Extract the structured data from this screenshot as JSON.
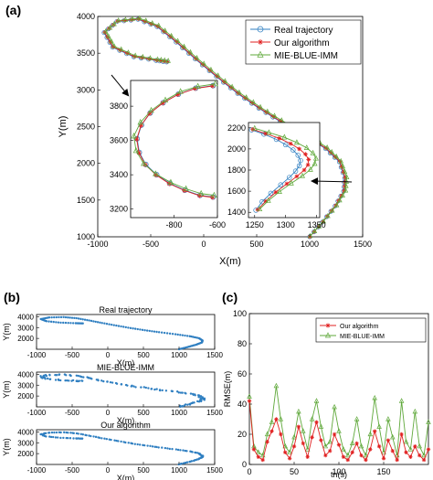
{
  "panels": {
    "a": "(a)",
    "b": "(b)",
    "c": "(c)"
  },
  "colors": {
    "real": "#2f7fc1",
    "ours": "#e02020",
    "mie": "#5fa83a",
    "arrow": "#000000"
  },
  "chart_data": [
    {
      "id": "a-main",
      "type": "line",
      "xlabel": "X(m)",
      "ylabel": "Y(m)",
      "xlim": [
        -1000,
        1500
      ],
      "ylim": [
        1000,
        4000
      ],
      "xticks": [
        -1000,
        -500,
        0,
        500,
        1000,
        1500
      ],
      "yticks": [
        1000,
        1500,
        2000,
        2500,
        3000,
        3500,
        4000
      ],
      "legend": {
        "position": "top-right",
        "entries": [
          "Real trajectory",
          "Our algorithm",
          "MIE-BLUE-IMM"
        ]
      },
      "series": [
        {
          "name": "Real trajectory",
          "marker": "circle",
          "points": [
            [
              1000,
              1000
            ],
            [
              1120,
              1200
            ],
            [
              1240,
              1420
            ],
            [
              1320,
              1620
            ],
            [
              1330,
              1800
            ],
            [
              1280,
              2020
            ],
            [
              1150,
              2200
            ],
            [
              950,
              2380
            ],
            [
              720,
              2570
            ],
            [
              520,
              2750
            ],
            [
              320,
              2950
            ],
            [
              120,
              3180
            ],
            [
              -80,
              3420
            ],
            [
              -260,
              3650
            ],
            [
              -440,
              3860
            ],
            [
              -620,
              3960
            ],
            [
              -820,
              3930
            ],
            [
              -940,
              3780
            ],
            [
              -860,
              3580
            ],
            [
              -660,
              3450
            ],
            [
              -450,
              3400
            ],
            [
              -350,
              3380
            ]
          ]
        },
        {
          "name": "Our algorithm",
          "marker": "star",
          "points": [
            [
              1000,
              1000
            ],
            [
              1125,
              1205
            ],
            [
              1245,
              1425
            ],
            [
              1325,
              1625
            ],
            [
              1335,
              1805
            ],
            [
              1285,
              2025
            ],
            [
              1155,
              2205
            ],
            [
              955,
              2385
            ],
            [
              725,
              2575
            ],
            [
              525,
              2755
            ],
            [
              325,
              2955
            ],
            [
              125,
              3185
            ],
            [
              -75,
              3425
            ],
            [
              -255,
              3655
            ],
            [
              -435,
              3865
            ],
            [
              -615,
              3965
            ],
            [
              -815,
              3935
            ],
            [
              -935,
              3785
            ],
            [
              -855,
              3585
            ],
            [
              -655,
              3455
            ],
            [
              -445,
              3405
            ],
            [
              -345,
              3385
            ]
          ]
        },
        {
          "name": "MIE-BLUE-IMM",
          "marker": "triangle",
          "points": [
            [
              1005,
              1010
            ],
            [
              1130,
              1210
            ],
            [
              1255,
              1430
            ],
            [
              1340,
              1630
            ],
            [
              1350,
              1810
            ],
            [
              1295,
              2030
            ],
            [
              1165,
              2215
            ],
            [
              965,
              2395
            ],
            [
              735,
              2585
            ],
            [
              535,
              2765
            ],
            [
              335,
              2965
            ],
            [
              135,
              3195
            ],
            [
              -65,
              3435
            ],
            [
              -245,
              3665
            ],
            [
              -425,
              3875
            ],
            [
              -605,
              3975
            ],
            [
              -805,
              3945
            ],
            [
              -925,
              3795
            ],
            [
              -845,
              3595
            ],
            [
              -645,
              3465
            ],
            [
              -435,
              3415
            ],
            [
              -335,
              3395
            ]
          ]
        }
      ]
    },
    {
      "id": "a-inset-left",
      "type": "line",
      "xlim": [
        -1000,
        -600
      ],
      "ylim": [
        3150,
        3950
      ],
      "xticks": [
        -800,
        -600
      ],
      "yticks": [
        3200,
        3400,
        3600,
        3800
      ],
      "series": [
        {
          "name": "Real trajectory",
          "points": [
            [
              -620,
              3920
            ],
            [
              -700,
              3905
            ],
            [
              -780,
              3870
            ],
            [
              -850,
              3820
            ],
            [
              -910,
              3760
            ],
            [
              -950,
              3690
            ],
            [
              -970,
              3610
            ],
            [
              -960,
              3530
            ],
            [
              -930,
              3460
            ],
            [
              -880,
              3400
            ],
            [
              -820,
              3350
            ],
            [
              -750,
              3310
            ],
            [
              -680,
              3280
            ],
            [
              -620,
              3270
            ]
          ]
        },
        {
          "name": "Our algorithm",
          "points": [
            [
              -622,
              3918
            ],
            [
              -702,
              3903
            ],
            [
              -782,
              3868
            ],
            [
              -852,
              3818
            ],
            [
              -912,
              3758
            ],
            [
              -952,
              3688
            ],
            [
              -972,
              3608
            ],
            [
              -962,
              3528
            ],
            [
              -932,
              3458
            ],
            [
              -882,
              3398
            ],
            [
              -822,
              3348
            ],
            [
              -752,
              3308
            ],
            [
              -682,
              3278
            ],
            [
              -622,
              3268
            ]
          ]
        },
        {
          "name": "MIE-BLUE-IMM",
          "points": [
            [
              -610,
              3930
            ],
            [
              -690,
              3915
            ],
            [
              -770,
              3885
            ],
            [
              -840,
              3835
            ],
            [
              -905,
              3775
            ],
            [
              -955,
              3705
            ],
            [
              -985,
              3625
            ],
            [
              -975,
              3540
            ],
            [
              -940,
              3465
            ],
            [
              -885,
              3405
            ],
            [
              -815,
              3355
            ],
            [
              -745,
              3318
            ],
            [
              -675,
              3290
            ],
            [
              -615,
              3280
            ]
          ]
        }
      ]
    },
    {
      "id": "a-inset-right",
      "type": "line",
      "xlim": [
        1240,
        1355
      ],
      "ylim": [
        1350,
        2250
      ],
      "xticks": [
        1250,
        1300,
        1350
      ],
      "yticks": [
        1400,
        1600,
        1800,
        2000,
        2200
      ],
      "series": [
        {
          "name": "Real trajectory",
          "points": [
            [
              1245,
              2180
            ],
            [
              1265,
              2140
            ],
            [
              1285,
              2090
            ],
            [
              1300,
              2040
            ],
            [
              1312,
              1990
            ],
            [
              1320,
              1940
            ],
            [
              1324,
              1890
            ],
            [
              1322,
              1840
            ],
            [
              1316,
              1790
            ],
            [
              1306,
              1730
            ],
            [
              1292,
              1660
            ],
            [
              1276,
              1580
            ],
            [
              1262,
              1500
            ],
            [
              1252,
              1420
            ]
          ]
        },
        {
          "name": "Our algorithm",
          "points": [
            [
              1247,
              2185
            ],
            [
              1268,
              2145
            ],
            [
              1290,
              2100
            ],
            [
              1308,
              2050
            ],
            [
              1322,
              2000
            ],
            [
              1332,
              1950
            ],
            [
              1337,
              1900
            ],
            [
              1336,
              1850
            ],
            [
              1330,
              1800
            ],
            [
              1318,
              1740
            ],
            [
              1302,
              1670
            ],
            [
              1284,
              1590
            ],
            [
              1268,
              1505
            ],
            [
              1255,
              1425
            ]
          ]
        },
        {
          "name": "MIE-BLUE-IMM",
          "points": [
            [
              1250,
              2195
            ],
            [
              1273,
              2155
            ],
            [
              1298,
              2110
            ],
            [
              1318,
              2060
            ],
            [
              1334,
              2010
            ],
            [
              1344,
              1960
            ],
            [
              1349,
              1910
            ],
            [
              1347,
              1860
            ],
            [
              1340,
              1805
            ],
            [
              1327,
              1745
            ],
            [
              1309,
              1675
            ],
            [
              1290,
              1595
            ],
            [
              1272,
              1510
            ],
            [
              1258,
              1430
            ]
          ]
        }
      ]
    },
    {
      "id": "b-real",
      "type": "scatter",
      "title": "Real trajectory",
      "xlabel": "X(m)",
      "ylabel": "Y(m)",
      "xlim": [
        -1000,
        1500
      ],
      "ylim": [
        1000,
        4200
      ],
      "xticks": [
        -1000,
        -500,
        0,
        500,
        1000,
        1500
      ],
      "yticks": [
        2000,
        3000,
        4000
      ]
    },
    {
      "id": "b-mie",
      "type": "scatter",
      "title": "MIE-BLUE-IMM",
      "xlabel": "X(m)",
      "ylabel": "Y(m)",
      "xlim": [
        -1000,
        1500
      ],
      "ylim": [
        1000,
        4200
      ],
      "xticks": [
        -1000,
        -500,
        0,
        500,
        1000,
        1500
      ],
      "yticks": [
        2000,
        3000,
        4000
      ]
    },
    {
      "id": "b-ours",
      "type": "scatter",
      "title": "Our algorithm",
      "xlabel": "X(m)",
      "ylabel": "Y(m)",
      "xlim": [
        -1000,
        1500
      ],
      "ylim": [
        1000,
        4200
      ],
      "xticks": [
        -1000,
        -500,
        0,
        500,
        1000,
        1500
      ],
      "yticks": [
        2000,
        3000,
        4000
      ]
    },
    {
      "id": "c-rmse",
      "type": "line",
      "xlabel": "tn(s)",
      "ylabel": "RMSE(m)",
      "xlim": [
        0,
        200
      ],
      "ylim": [
        0,
        100
      ],
      "xticks": [
        0,
        50,
        100,
        150
      ],
      "yticks": [
        0,
        20,
        40,
        60,
        80,
        100
      ],
      "legend": {
        "position": "top-right",
        "entries": [
          "Our algorithm",
          "MIE-BLUE-IMM"
        ]
      },
      "series": [
        {
          "name": "Our algorithm",
          "x": [
            0,
            5,
            10,
            15,
            20,
            25,
            30,
            35,
            40,
            45,
            50,
            55,
            60,
            65,
            70,
            75,
            80,
            85,
            90,
            95,
            100,
            105,
            110,
            115,
            120,
            125,
            130,
            135,
            140,
            145,
            150,
            155,
            160,
            165,
            170,
            175,
            180,
            185,
            190,
            195,
            200
          ],
          "y": [
            42,
            10,
            5,
            3,
            15,
            22,
            30,
            20,
            8,
            4,
            12,
            25,
            14,
            5,
            18,
            28,
            16,
            6,
            9,
            20,
            13,
            5,
            3,
            8,
            14,
            6,
            3,
            10,
            22,
            12,
            4,
            16,
            9,
            3,
            20,
            8,
            5,
            12,
            6,
            3,
            10
          ]
        },
        {
          "name": "MIE-BLUE-IMM",
          "x": [
            0,
            5,
            10,
            15,
            20,
            25,
            30,
            35,
            40,
            45,
            50,
            55,
            60,
            65,
            70,
            75,
            80,
            85,
            90,
            95,
            100,
            105,
            110,
            115,
            120,
            125,
            130,
            135,
            140,
            145,
            150,
            155,
            160,
            165,
            170,
            175,
            180,
            185,
            190,
            195,
            200
          ],
          "y": [
            45,
            12,
            8,
            6,
            20,
            28,
            52,
            30,
            12,
            8,
            18,
            35,
            22,
            10,
            30,
            42,
            25,
            12,
            15,
            38,
            22,
            10,
            6,
            14,
            30,
            12,
            6,
            20,
            44,
            25,
            8,
            30,
            18,
            6,
            42,
            15,
            10,
            35,
            12,
            6,
            28
          ]
        }
      ]
    }
  ]
}
